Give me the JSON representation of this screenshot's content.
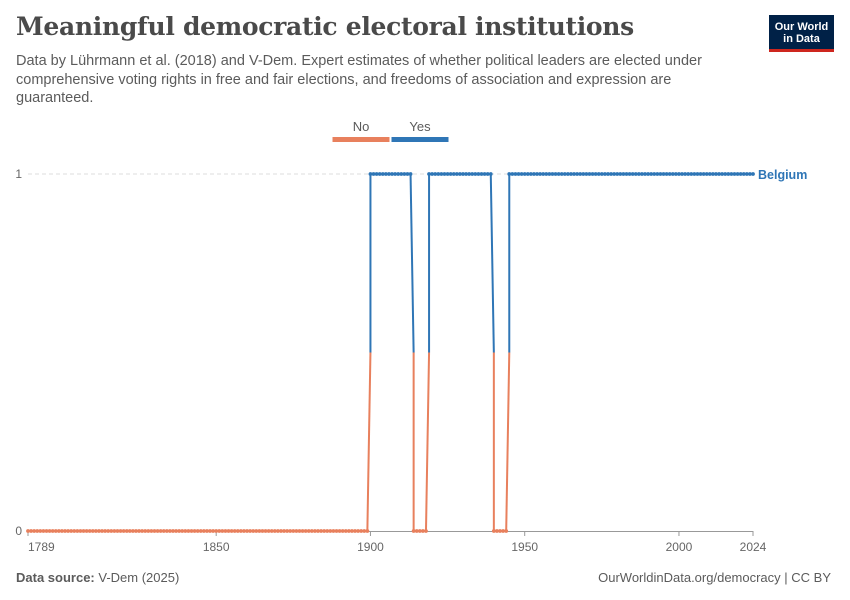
{
  "title": "Meaningful democratic electoral institutions",
  "subtitle": "Data by Lührmann et al. (2018) and V-Dem. Expert estimates of whether political leaders are elected under comprehensive voting rights in free and fair elections, and freedoms of association and expression are guaranteed.",
  "logo": {
    "line1": "Our World",
    "line2": "in Data",
    "bg": "#002147",
    "accent": "#ce261e"
  },
  "footer": {
    "source_label": "Data source:",
    "source_value": "V-Dem (2025)",
    "right": "OurWorldinData.org/democracy | CC BY"
  },
  "colors": {
    "no": "#e8805d",
    "yes": "#2f76b6",
    "grid": "#dddddd",
    "axis": "#5b5b5b"
  },
  "chart_data": {
    "type": "line",
    "title": "Meaningful democratic electoral institutions",
    "xlabel": "",
    "ylabel": "",
    "xlim": [
      1789,
      2024
    ],
    "ylim": [
      0,
      1
    ],
    "x_ticks": [
      1789,
      1850,
      1900,
      1950,
      2000,
      2024
    ],
    "y_ticks": [
      0,
      1
    ],
    "legend": {
      "placement": "top",
      "entries": [
        "No",
        "Yes"
      ]
    },
    "series": [
      {
        "name": "Belgium",
        "segments": [
          {
            "x_start": 1789,
            "x_end": 1899,
            "value": 0
          },
          {
            "x_start": 1900,
            "x_end": 1913,
            "value": 1
          },
          {
            "x_start": 1914,
            "x_end": 1918,
            "value": 0
          },
          {
            "x_start": 1919,
            "x_end": 1939,
            "value": 1
          },
          {
            "x_start": 1940,
            "x_end": 1944,
            "value": 0
          },
          {
            "x_start": 1945,
            "x_end": 2024,
            "value": 1
          }
        ]
      }
    ]
  }
}
